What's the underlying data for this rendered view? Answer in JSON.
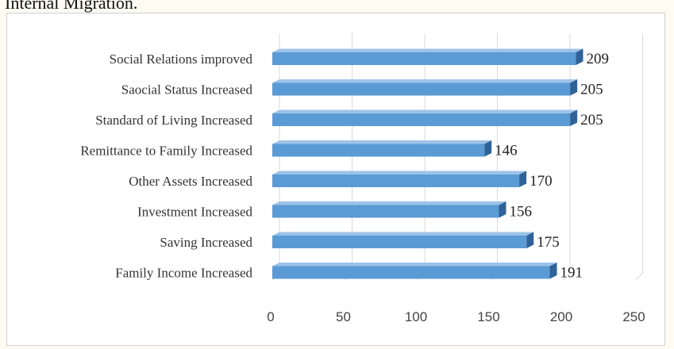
{
  "caption": "Internal Migration.",
  "chart_data": {
    "type": "bar",
    "orientation": "horizontal",
    "style": "3d",
    "title": "",
    "xlabel": "",
    "ylabel": "",
    "categories": [
      "Social Relations improved",
      "Saocial Status Increased",
      "Standard of Living Increased",
      "Remittance to Family Increased",
      "Other Assets Increased",
      "Investment Increased",
      "Saving Increased",
      "Family Income Increased"
    ],
    "values": [
      209,
      205,
      205,
      146,
      170,
      156,
      175,
      191
    ],
    "xlim": [
      0,
      250
    ],
    "xticks": [
      "0",
      "50",
      "100",
      "150",
      "200",
      "250"
    ],
    "grid": true,
    "legend": "none",
    "colors": {
      "bar_face": "#5b9bd5",
      "bar_top": "#9cc3e8",
      "bar_side": "#2f6299",
      "gridline": "#d9d9d9"
    }
  }
}
